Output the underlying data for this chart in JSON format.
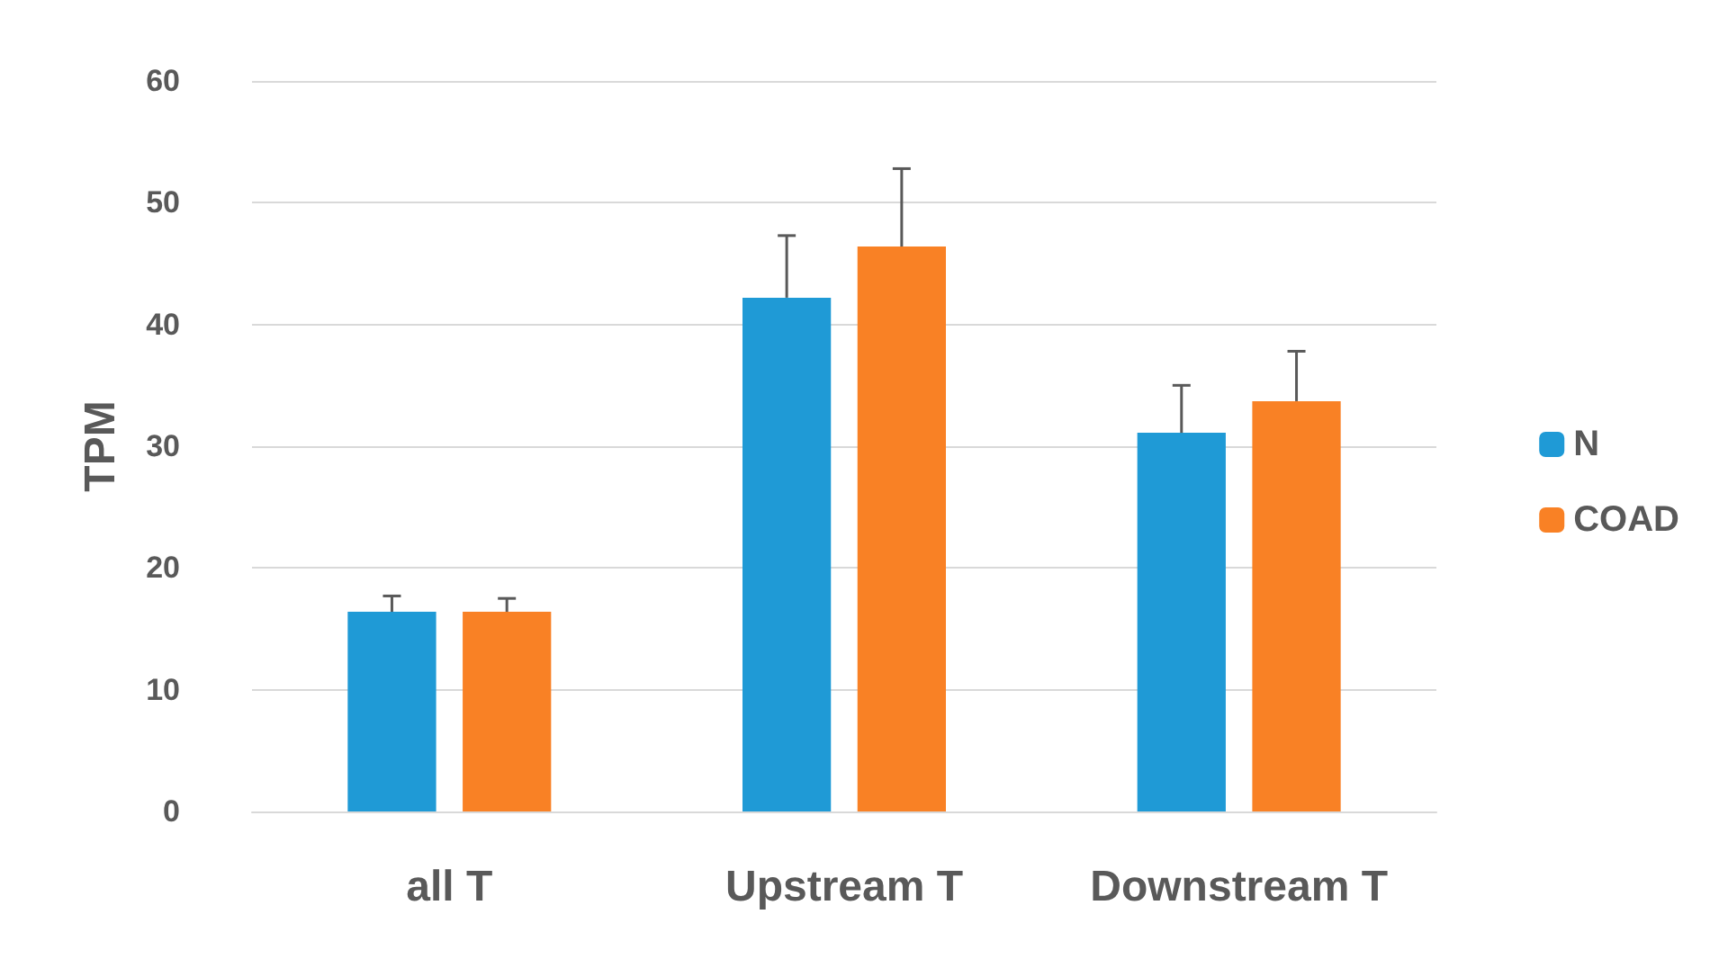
{
  "chart_data": {
    "type": "bar",
    "ylabel": "TPM",
    "categories": [
      "all T",
      "Upstream T",
      "Downstream T"
    ],
    "series": [
      {
        "name": "N",
        "color": "#1f9ad6",
        "values": [
          16.4,
          42.2,
          31.1
        ],
        "errors": [
          [
            16.4,
            17.7
          ],
          [
            42.2,
            47.3
          ],
          [
            31.1,
            35.0
          ]
        ]
      },
      {
        "name": "COAD",
        "color": "#f98125",
        "values": [
          16.4,
          46.4,
          33.7
        ],
        "errors": [
          [
            16.4,
            17.5
          ],
          [
            46.4,
            52.8
          ],
          [
            33.7,
            37.8
          ]
        ]
      }
    ],
    "ylim": [
      0,
      60
    ],
    "yticks": [
      0,
      10,
      20,
      30,
      40,
      50,
      60
    ],
    "grid": "y",
    "legend": "right"
  }
}
